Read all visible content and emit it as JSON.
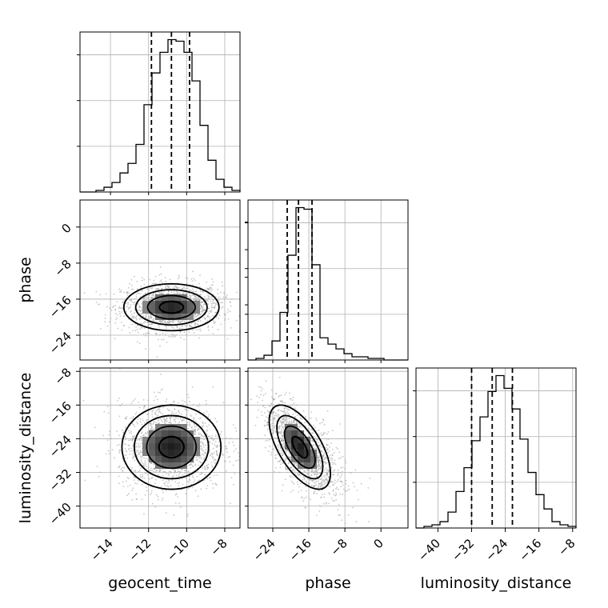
{
  "chart_data": {
    "type": "corner",
    "title": "",
    "parameters": [
      "geocent_time",
      "phase",
      "luminosity_distance"
    ],
    "ticks": {
      "geocent_time": [
        "−14",
        "−12",
        "−10",
        "−8"
      ],
      "phase": [
        "−24",
        "−16",
        "−8",
        "0"
      ],
      "phase_row": [
        "0",
        "−8",
        "−16",
        "−24"
      ],
      "luminosity_distance": [
        "−8",
        "−16",
        "−24",
        "−32",
        "−40"
      ],
      "luminosity_distance_x": [
        "−40",
        "−32",
        "−24",
        "−16",
        "−8"
      ]
    },
    "ranges": {
      "geocent_time": [
        -15.6,
        -7.2
      ],
      "phase": [
        -29.5,
        6.0
      ],
      "luminosity_distance": [
        -45.2,
        -7.2
      ]
    },
    "quantiles": {
      "geocent_time": [
        -11.85,
        -10.8,
        -9.85
      ],
      "phase": [
        -20.8,
        -18.3,
        -15.3
      ],
      "luminosity_distance": [
        -32.0,
        -27.1,
        -22.3
      ]
    },
    "histograms": {
      "geocent_time": {
        "edges": [
          -15.6,
          -15.18,
          -14.76,
          -14.34,
          -13.92,
          -13.5,
          -13.08,
          -12.66,
          -12.24,
          -11.82,
          -11.4,
          -10.98,
          -10.56,
          -10.14,
          -9.72,
          -9.3,
          -8.88,
          -8.46,
          -8.04,
          -7.62,
          -7.2
        ],
        "counts": [
          0,
          0,
          1,
          3,
          6,
          12,
          18,
          30,
          55,
          75,
          88,
          96,
          95,
          88,
          70,
          42,
          20,
          8,
          3,
          1
        ]
      },
      "phase": {
        "edges": [
          -29.5,
          -27.725,
          -25.95,
          -24.175,
          -22.4,
          -20.625,
          -18.85,
          -17.075,
          -15.3,
          -13.525,
          -11.75,
          -9.975,
          -8.2,
          -6.425,
          -4.65,
          -2.875,
          -1.1,
          0.675,
          2.45,
          4.225,
          6.0
        ],
        "counts": [
          0,
          1,
          3,
          12,
          30,
          66,
          96,
          95,
          60,
          14,
          10,
          7,
          4,
          2,
          2,
          1,
          1,
          0,
          0,
          0
        ]
      },
      "luminosity_distance": {
        "edges": [
          -45.2,
          -43.3,
          -41.4,
          -39.5,
          -37.6,
          -35.7,
          -33.8,
          -31.9,
          -30.0,
          -28.1,
          -26.2,
          -24.3,
          -22.4,
          -20.5,
          -18.6,
          -16.7,
          -14.8,
          -12.9,
          -11.0,
          -9.1,
          -7.2
        ],
        "counts": [
          0,
          1,
          2,
          4,
          10,
          23,
          38,
          55,
          70,
          86,
          96,
          88,
          75,
          56,
          35,
          21,
          12,
          4,
          2,
          1
        ]
      }
    },
    "pairs": [
      {
        "x": "geocent_time",
        "y": "phase",
        "center": [
          -10.8,
          -17.8
        ],
        "sigma": [
          1.25,
          2.6
        ],
        "corr": 0.0
      },
      {
        "x": "geocent_time",
        "y": "luminosity_distance",
        "center": [
          -10.8,
          -26.0
        ],
        "sigma": [
          1.3,
          5.0
        ],
        "corr": 0.0
      },
      {
        "x": "phase",
        "y": "luminosity_distance",
        "center": [
          -18.0,
          -26.0
        ],
        "sigma": [
          3.4,
          5.0
        ],
        "corr": -0.62
      }
    ],
    "contour_levels_sigma": [
      0.5,
      1.0,
      1.5,
      2.0
    ],
    "grid": true
  }
}
